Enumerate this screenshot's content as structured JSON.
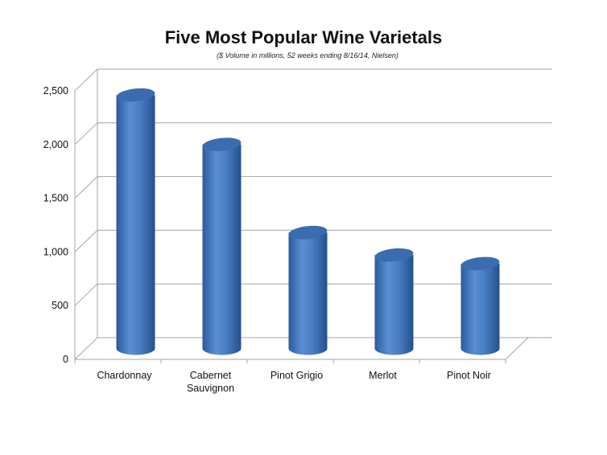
{
  "chart_data": {
    "type": "bar",
    "style": "3d-cylinder",
    "title": "Five Most Popular Wine Varietals",
    "subtitle": "($ Volume in millions, 52 weeks ending 8/16/14, Nielsen)",
    "categories": [
      "Chardonnay",
      "Cabernet Sauvignon",
      "Pinot Grigio",
      "Merlot",
      "Pinot Noir"
    ],
    "category_label_lines": [
      [
        "Chardonnay"
      ],
      [
        "Cabernet",
        "Sauvignon"
      ],
      [
        "Pinot Grigio"
      ],
      [
        "Merlot"
      ],
      [
        "Pinot Noir"
      ]
    ],
    "values": [
      2360,
      1900,
      1080,
      870,
      790
    ],
    "xlabel": "",
    "ylabel": "",
    "ylim": [
      0,
      2500
    ],
    "yticks": [
      0,
      500,
      1000,
      1500,
      2000,
      2500
    ],
    "ytick_labels": [
      "0",
      "500",
      "1,000",
      "1,500",
      "2,000",
      "2,500"
    ],
    "grid": true,
    "legend": "none",
    "bar_color": "#4a7fc4"
  }
}
